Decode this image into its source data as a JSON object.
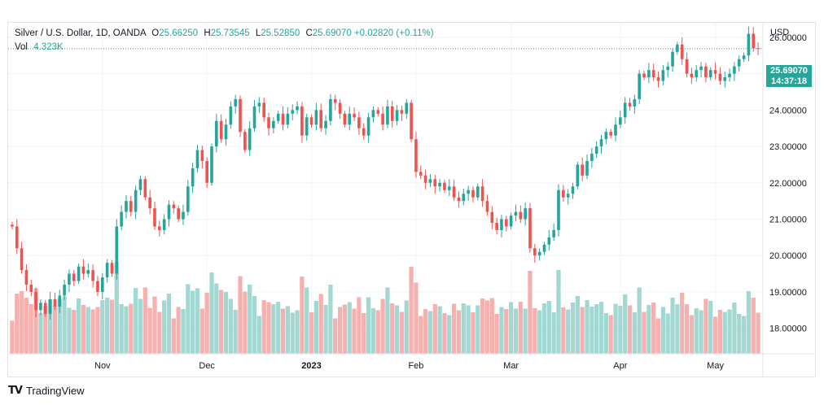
{
  "header": {
    "symbol": "Silver / U.S. Dollar, 1D, OANDA",
    "open_label": "O",
    "open": "25.66250",
    "high_label": "H",
    "high": "25.73545",
    "low_label": "L",
    "low": "25.52850",
    "close_label": "C",
    "close": "25.69070",
    "change": "+0.02820 (+0.11%)",
    "vol_label": "Vol",
    "vol": "4.323K"
  },
  "price_axis": {
    "currency": "USD",
    "last_price": "25.69070",
    "countdown": "14:37:18"
  },
  "footer": {
    "brand": "TradingView"
  },
  "colors": {
    "up": "#26a69a",
    "down": "#ef5350",
    "up_vol": "#a3d8d2",
    "down_vol": "#f5b1af",
    "grid": "#f0f3fa"
  },
  "chart_data": {
    "type": "candlestick",
    "ylim": [
      17.3,
      26.4
    ],
    "y_ticks": [
      "18.00000",
      "19.00000",
      "20.00000",
      "21.00000",
      "22.00000",
      "23.00000",
      "24.00000",
      "25.00000",
      "26.00000"
    ],
    "y_tick_values": [
      18,
      19,
      20,
      21,
      22,
      23,
      24,
      25,
      26
    ],
    "x_ticks": [
      {
        "label": "Nov",
        "index": 19,
        "bold": false
      },
      {
        "label": "Dec",
        "index": 41,
        "bold": false
      },
      {
        "label": "2023",
        "index": 63,
        "bold": true
      },
      {
        "label": "Feb",
        "index": 85,
        "bold": false
      },
      {
        "label": "Mar",
        "index": 105,
        "bold": false
      },
      {
        "label": "Apr",
        "index": 128,
        "bold": false
      },
      {
        "label": "May",
        "index": 148,
        "bold": false
      }
    ],
    "closes": [
      20.8,
      20.2,
      19.6,
      19.2,
      19.0,
      18.5,
      18.7,
      18.4,
      18.8,
      18.6,
      18.9,
      19.2,
      19.5,
      19.3,
      19.7,
      19.5,
      19.6,
      19.3,
      19.0,
      19.4,
      19.8,
      19.5,
      20.8,
      21.2,
      21.5,
      21.2,
      21.8,
      22.1,
      21.6,
      21.3,
      20.8,
      20.7,
      21.0,
      21.4,
      21.3,
      21.0,
      21.2,
      21.9,
      22.4,
      22.9,
      22.6,
      22.0,
      23.0,
      23.7,
      23.2,
      23.6,
      24.1,
      24.3,
      23.4,
      22.9,
      23.5,
      24.1,
      24.2,
      23.8,
      23.5,
      23.7,
      23.9,
      23.6,
      23.9,
      24.0,
      24.1,
      23.3,
      23.8,
      23.6,
      24.0,
      23.5,
      23.7,
      24.3,
      24.2,
      23.9,
      23.6,
      23.9,
      23.8,
      23.5,
      23.3,
      23.8,
      24.0,
      23.9,
      23.6,
      24.1,
      23.7,
      24.0,
      23.9,
      24.2,
      23.2,
      22.3,
      22.2,
      22.0,
      22.1,
      21.9,
      22.0,
      21.8,
      21.9,
      21.6,
      21.5,
      21.7,
      21.8,
      21.6,
      21.9,
      21.5,
      21.2,
      20.9,
      20.7,
      21.0,
      20.8,
      21.1,
      21.2,
      21.0,
      21.3,
      20.2,
      20.0,
      20.1,
      20.3,
      20.5,
      20.7,
      21.8,
      21.6,
      21.7,
      21.9,
      22.5,
      22.2,
      22.6,
      22.8,
      23.0,
      23.2,
      23.4,
      23.3,
      23.6,
      23.8,
      24.2,
      24.1,
      24.3,
      25.0,
      24.9,
      25.1,
      24.9,
      24.8,
      25.1,
      25.2,
      25.6,
      25.8,
      25.4,
      25.0,
      24.9,
      25.1,
      25.2,
      24.9,
      25.1,
      25.0,
      24.8,
      24.9,
      25.0,
      25.2,
      25.4,
      25.5,
      26.1,
      25.7,
      25.69
    ]
  }
}
